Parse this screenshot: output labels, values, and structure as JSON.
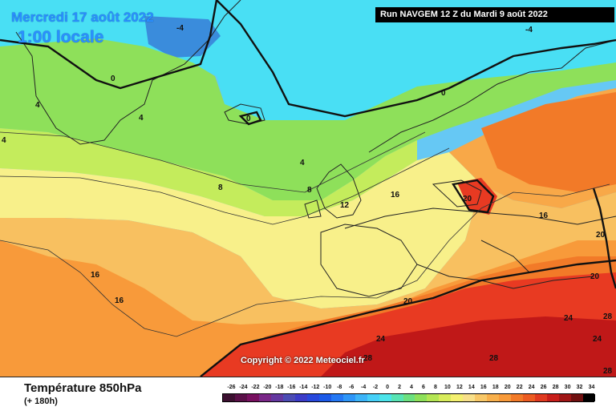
{
  "header": {
    "date_title": "Mercredi 17 août 2022",
    "local_time": "1:00 locale",
    "run_info": "Run NAVGEM 12 Z du Mardi 9 août 2022"
  },
  "map": {
    "copyright": "Copyright © 2022 Meteociel.fr",
    "region": "Europe / North Atlantic",
    "isotherm_labels": [
      "0",
      "-4",
      "-4",
      "4",
      "4",
      "0",
      "0",
      "4",
      "8",
      "8",
      "12",
      "16",
      "20",
      "16",
      "16",
      "16",
      "20",
      "20",
      "20",
      "24",
      "24",
      "28",
      "28",
      "28",
      "24",
      "28",
      "4"
    ],
    "colors": {
      "deep_cold": "#3a8cdc",
      "cold": "#66c8f4",
      "cyan": "#49dff4",
      "green": "#8ee05a",
      "light_green": "#c4ec5c",
      "yellow": "#f8f08a",
      "light_orange": "#f8c060",
      "orange": "#f89a3a",
      "dark_orange": "#f27a28",
      "red": "#e83a22",
      "dark_red": "#c01818"
    }
  },
  "footer": {
    "variable_title": "Température 850hPa",
    "forecast_hour": "(+ 180h)",
    "scale": {
      "values": [
        "-26",
        "-24",
        "-22",
        "-20",
        "-18",
        "-16",
        "-14",
        "-12",
        "-10",
        "-8",
        "-6",
        "-4",
        "-2",
        "0",
        "2",
        "4",
        "6",
        "8",
        "10",
        "12",
        "14",
        "16",
        "18",
        "20",
        "22",
        "24",
        "26",
        "28",
        "30",
        "32",
        "34"
      ],
      "colors": [
        "#3c1030",
        "#5a1048",
        "#781060",
        "#7a2888",
        "#6438a0",
        "#4c4cb4",
        "#3c3cc8",
        "#2848dc",
        "#1c5ae8",
        "#2478f4",
        "#2e96f8",
        "#3cb4f8",
        "#46d0f8",
        "#4ce4ea",
        "#58e4b4",
        "#6ce080",
        "#8ee05a",
        "#b4e654",
        "#d8ec5c",
        "#f4f070",
        "#f8e08a",
        "#f8c868",
        "#f8b04c",
        "#f89a3a",
        "#f27a28",
        "#ec5c22",
        "#e03a20",
        "#c81e1a",
        "#a01616",
        "#701010",
        "#000000"
      ]
    }
  }
}
